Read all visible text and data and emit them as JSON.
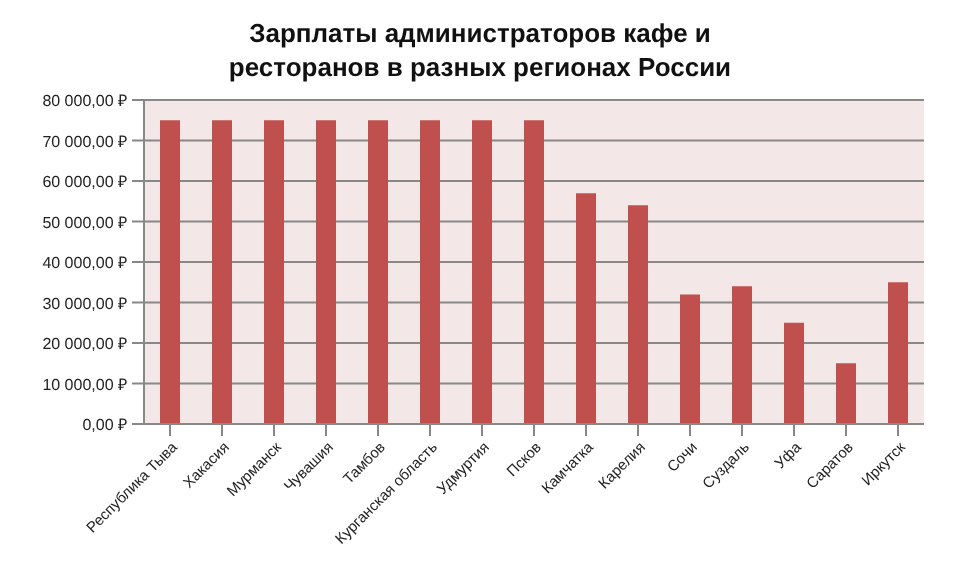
{
  "chart_data": {
    "type": "bar",
    "title": "Зарплаты администраторов кафе и ресторанов в разных регионах России",
    "categories": [
      "Республика Тыва",
      "Хакасия",
      "Мурманск",
      "Чувашия",
      "Тамбов",
      "Курганская область",
      "Удмуртия",
      "Псков",
      "Камчатка",
      "Карелия",
      "Сочи",
      "Суздаль",
      "Уфа",
      "Саратов",
      "Иркутск"
    ],
    "values": [
      75000,
      75000,
      75000,
      75000,
      75000,
      75000,
      75000,
      75000,
      57000,
      54000,
      32000,
      34000,
      25000,
      15000,
      35000
    ],
    "color": "#c0504d",
    "ylim": [
      0,
      80000
    ],
    "yticks": [
      {
        "value": 0,
        "label": "0,00 ₽"
      },
      {
        "value": 10000,
        "label": "10 000,00 ₽"
      },
      {
        "value": 20000,
        "label": "20 000,00 ₽"
      },
      {
        "value": 30000,
        "label": "30 000,00 ₽"
      },
      {
        "value": 40000,
        "label": "40 000,00 ₽"
      },
      {
        "value": 50000,
        "label": "50 000,00 ₽"
      },
      {
        "value": 60000,
        "label": "60 000,00 ₽"
      },
      {
        "value": 70000,
        "label": "70 000,00 ₽"
      },
      {
        "value": 80000,
        "label": "80 000,00 ₽"
      }
    ],
    "grid": "y"
  }
}
